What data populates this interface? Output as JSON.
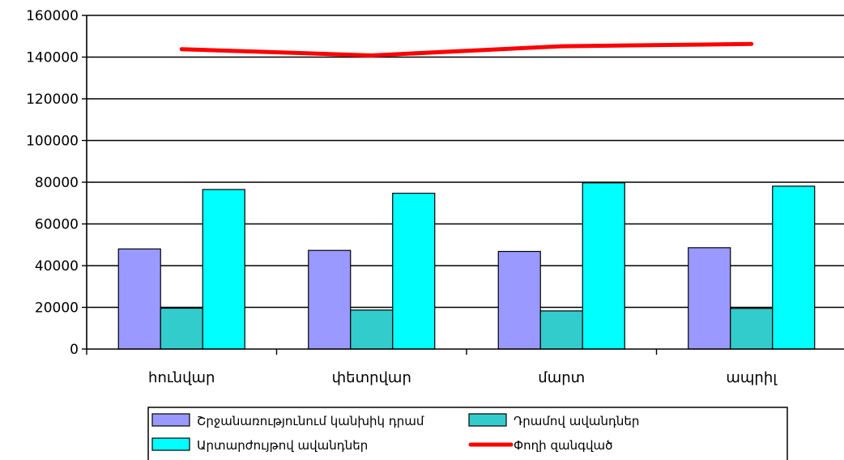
{
  "chart_data": {
    "type": "bar",
    "categories": [
      "հունվար",
      "փետրվար",
      "մարտ",
      "ապրիլ"
    ],
    "series": [
      {
        "name": "Շրջանառությունում կանխիկ դրամ",
        "type": "bar",
        "color": "#9999ff",
        "values": [
          48000,
          47300,
          46800,
          48600
        ]
      },
      {
        "name": "Դրամով ավանդներ",
        "type": "bar",
        "color": "#33cccc",
        "values": [
          19600,
          18700,
          18300,
          19500
        ]
      },
      {
        "name": "Արտարժույթով ավանդներ",
        "type": "bar",
        "color": "#00ffff",
        "values": [
          76500,
          74700,
          79700,
          78100
        ]
      },
      {
        "name": "Փողի զանգված",
        "type": "line",
        "color": "#ff0000",
        "values": [
          143800,
          140800,
          145200,
          146300
        ]
      }
    ],
    "yticks": [
      "0",
      "20000",
      "40000",
      "60000",
      "80000",
      "100000",
      "120000",
      "140000",
      "160000"
    ],
    "ylim": [
      0,
      160000
    ],
    "grid": true,
    "legend": "bottom",
    "title": "",
    "xlabel": "",
    "ylabel": ""
  }
}
